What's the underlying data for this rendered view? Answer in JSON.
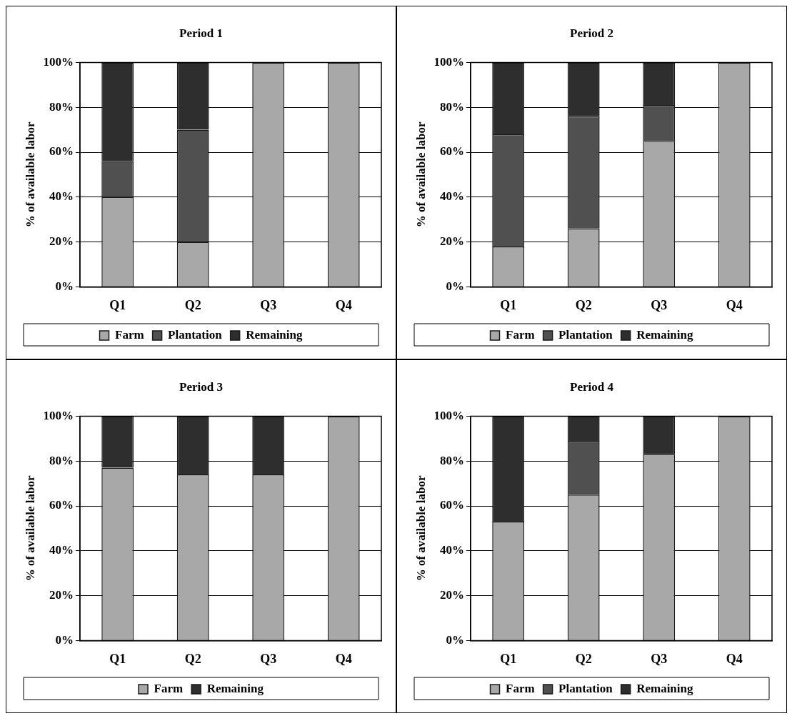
{
  "chart_data": [
    {
      "type": "bar",
      "title": "Period 1",
      "ylabel": "% of available labor",
      "categories": [
        "Q1",
        "Q2",
        "Q3",
        "Q4"
      ],
      "stacked": true,
      "ylim": [
        0,
        100
      ],
      "yticks": [
        {
          "value": 0,
          "label": "0%"
        },
        {
          "value": 20,
          "label": "20%"
        },
        {
          "value": 40,
          "label": "40%"
        },
        {
          "value": 60,
          "label": "60%"
        },
        {
          "value": 80,
          "label": "80%"
        },
        {
          "value": 100,
          "label": "100%"
        }
      ],
      "grid": "y",
      "legend": "bottom",
      "series": [
        {
          "name": "Farm",
          "color": "#a8a8a8",
          "values": [
            40,
            20,
            100,
            100
          ]
        },
        {
          "name": "Plantation",
          "color": "#505050",
          "values": [
            16,
            50,
            0,
            0
          ]
        },
        {
          "name": "Remaining",
          "color": "#2e2e2e",
          "values": [
            44,
            30,
            0,
            0
          ]
        }
      ]
    },
    {
      "type": "bar",
      "title": "Period 2",
      "ylabel": "% of available labor",
      "categories": [
        "Q1",
        "Q2",
        "Q3",
        "Q4"
      ],
      "stacked": true,
      "ylim": [
        0,
        100
      ],
      "yticks": [
        {
          "value": 0,
          "label": "0%"
        },
        {
          "value": 20,
          "label": "20%"
        },
        {
          "value": 40,
          "label": "40%"
        },
        {
          "value": 60,
          "label": "60%"
        },
        {
          "value": 80,
          "label": "80%"
        },
        {
          "value": 100,
          "label": "100%"
        }
      ],
      "grid": "y",
      "legend": "bottom",
      "series": [
        {
          "name": "Farm",
          "color": "#a8a8a8",
          "values": [
            18,
            26,
            65,
            100
          ]
        },
        {
          "name": "Plantation",
          "color": "#505050",
          "values": [
            50,
            50,
            16,
            0
          ]
        },
        {
          "name": "Remaining",
          "color": "#2e2e2e",
          "values": [
            32,
            24,
            19,
            0
          ]
        }
      ]
    },
    {
      "type": "bar",
      "title": "Period 3",
      "ylabel": "% of available labor",
      "categories": [
        "Q1",
        "Q2",
        "Q3",
        "Q4"
      ],
      "stacked": true,
      "ylim": [
        0,
        100
      ],
      "yticks": [
        {
          "value": 0,
          "label": "0%"
        },
        {
          "value": 20,
          "label": "20%"
        },
        {
          "value": 40,
          "label": "40%"
        },
        {
          "value": 60,
          "label": "60%"
        },
        {
          "value": 80,
          "label": "80%"
        },
        {
          "value": 100,
          "label": "100%"
        }
      ],
      "grid": "y",
      "legend": "bottom",
      "series": [
        {
          "name": "Farm",
          "color": "#a8a8a8",
          "values": [
            77,
            74,
            74,
            100
          ]
        },
        {
          "name": "Remaining",
          "color": "#2e2e2e",
          "values": [
            23,
            26,
            26,
            0
          ]
        }
      ]
    },
    {
      "type": "bar",
      "title": "Period 4",
      "ylabel": "% of available labor",
      "categories": [
        "Q1",
        "Q2",
        "Q3",
        "Q4"
      ],
      "stacked": true,
      "ylim": [
        0,
        100
      ],
      "yticks": [
        {
          "value": 0,
          "label": "0%"
        },
        {
          "value": 20,
          "label": "20%"
        },
        {
          "value": 40,
          "label": "40%"
        },
        {
          "value": 60,
          "label": "60%"
        },
        {
          "value": 80,
          "label": "80%"
        },
        {
          "value": 100,
          "label": "100%"
        }
      ],
      "grid": "y",
      "legend": "bottom",
      "series": [
        {
          "name": "Farm",
          "color": "#a8a8a8",
          "values": [
            53,
            65,
            83,
            100
          ]
        },
        {
          "name": "Plantation",
          "color": "#505050",
          "values": [
            0,
            24,
            0,
            0
          ]
        },
        {
          "name": "Remaining",
          "color": "#2e2e2e",
          "values": [
            47,
            11,
            17,
            0
          ]
        }
      ]
    }
  ]
}
